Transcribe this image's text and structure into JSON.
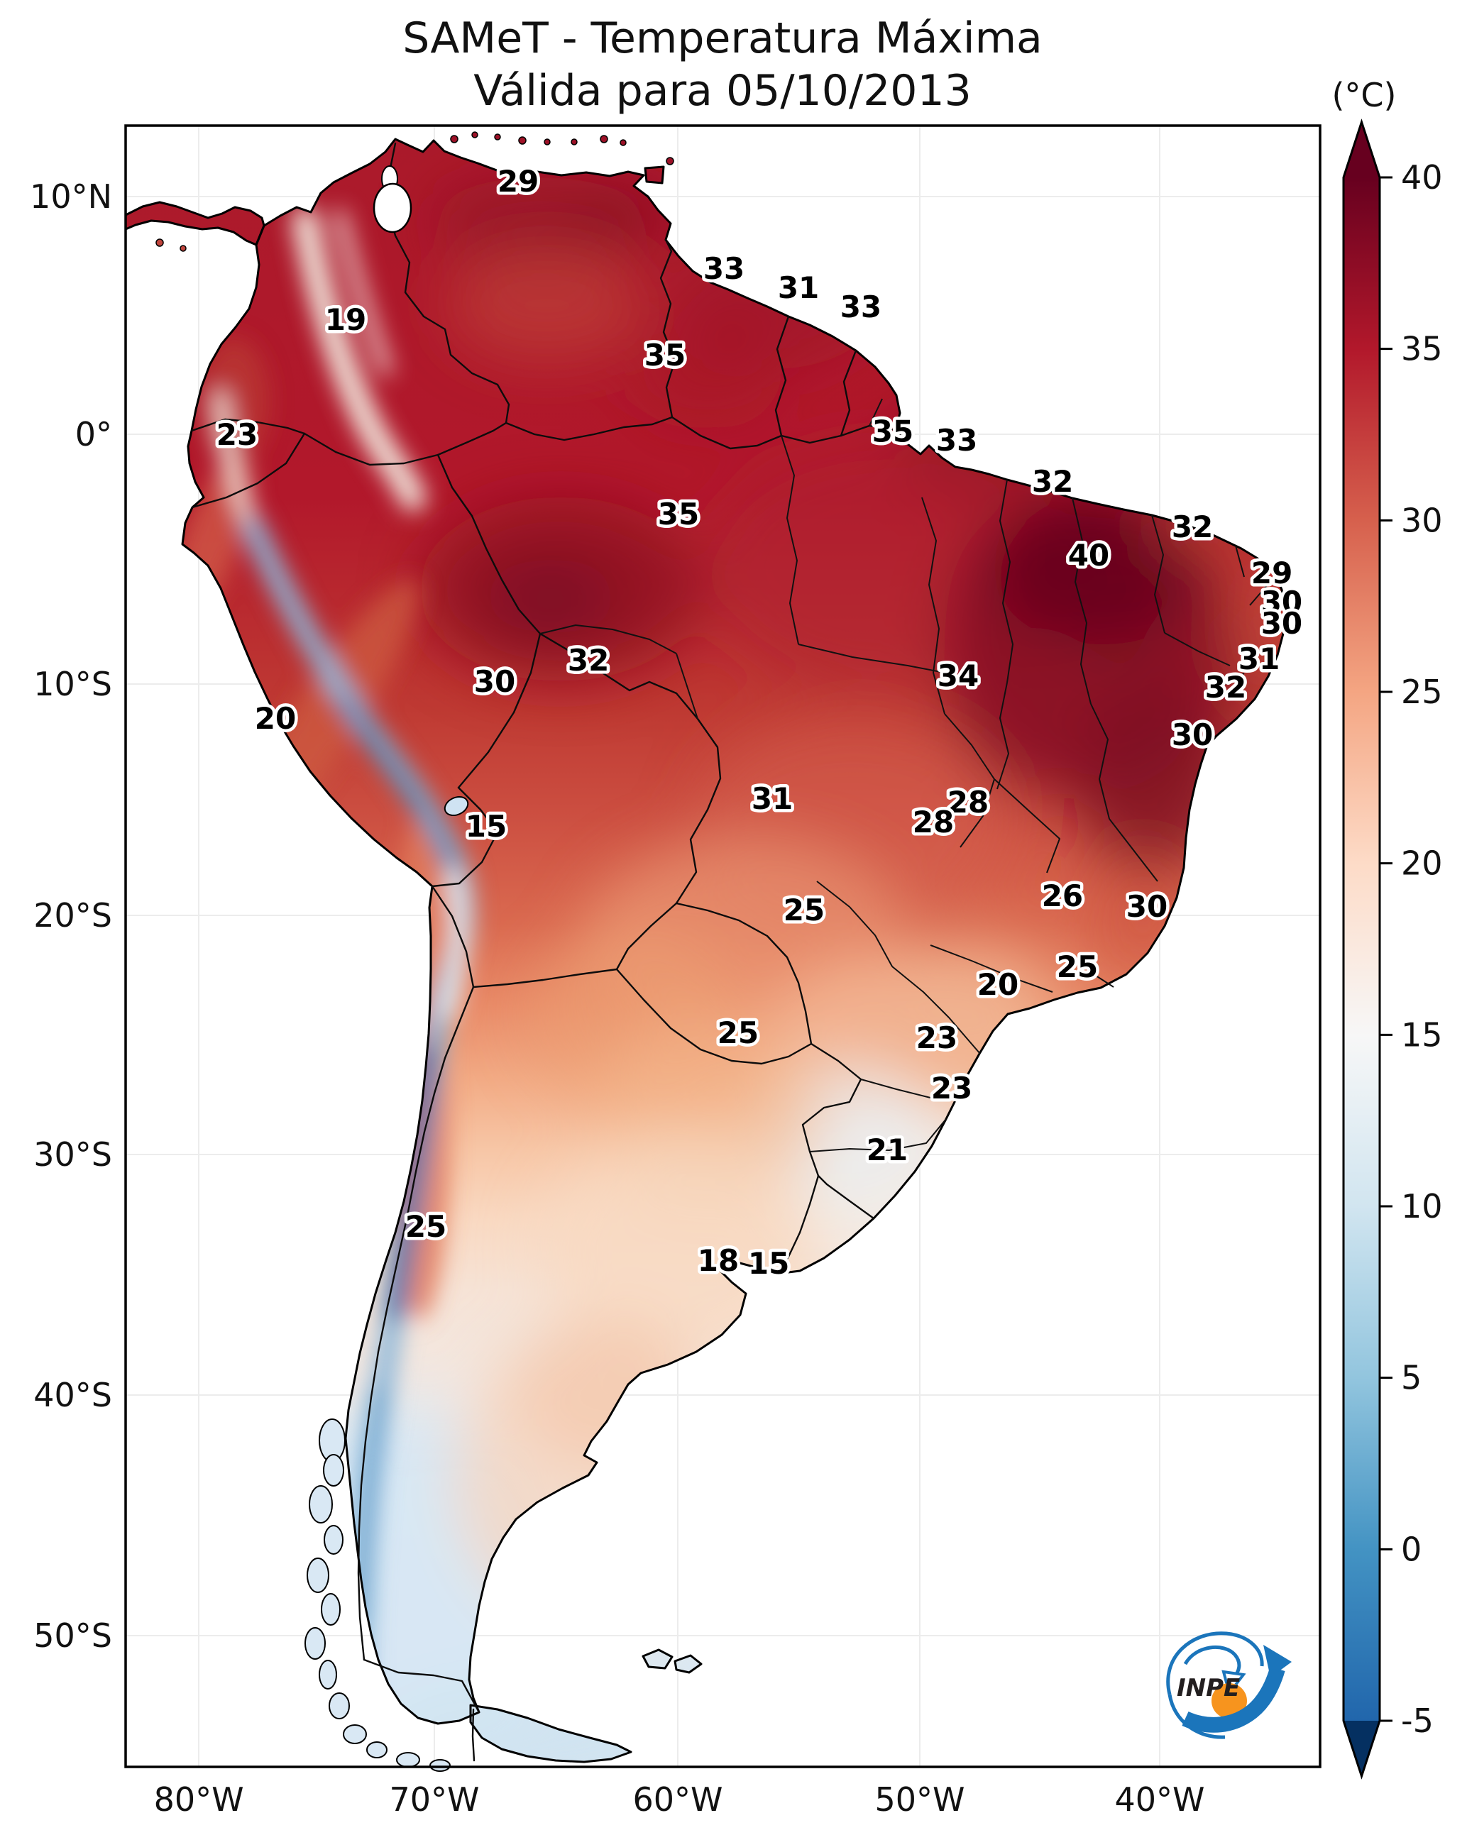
{
  "chart_data": {
    "type": "heatmap",
    "map_region": "South America",
    "title": "SAMeT - Temperatura Máxima",
    "subtitle": "Válida para 05/10/2013",
    "unit": "(°C)",
    "colorbar": {
      "ticks": [
        "40",
        "35",
        "30",
        "25",
        "20",
        "15",
        "10",
        "5",
        "0",
        "-5"
      ],
      "vmin": -5,
      "vmax": 40,
      "extend": "both",
      "colormap": "RdBu_r"
    },
    "x_axis": {
      "ticks": [
        {
          "label": "80°W",
          "x_pct": 13.55
        },
        {
          "label": "70°W",
          "x_pct": 29.61
        },
        {
          "label": "60°W",
          "x_pct": 46.2
        },
        {
          "label": "50°W",
          "x_pct": 62.7
        },
        {
          "label": "40°W",
          "x_pct": 79.05
        }
      ]
    },
    "y_axis": {
      "ticks": [
        {
          "label": "10°N",
          "y_pct": 10.71
        },
        {
          "label": "0°",
          "y_pct": 23.67
        },
        {
          "label": "10°S",
          "y_pct": 37.28
        },
        {
          "label": "20°S",
          "y_pct": 49.88
        },
        {
          "label": "30°S",
          "y_pct": 62.92
        },
        {
          "label": "40°S",
          "y_pct": 76.02
        },
        {
          "label": "50°S",
          "y_pct": 89.13
        }
      ]
    },
    "points": [
      {
        "v": "29",
        "x_pct": 35.32,
        "y_pct": 9.86
      },
      {
        "v": "33",
        "x_pct": 49.35,
        "y_pct": 14.62
      },
      {
        "v": "31",
        "x_pct": 54.43,
        "y_pct": 15.66
      },
      {
        "v": "33",
        "x_pct": 58.68,
        "y_pct": 16.71
      },
      {
        "v": "35",
        "x_pct": 45.33,
        "y_pct": 19.33
      },
      {
        "v": "35",
        "x_pct": 60.86,
        "y_pct": 23.5
      },
      {
        "v": "33",
        "x_pct": 65.22,
        "y_pct": 23.98
      },
      {
        "v": "32",
        "x_pct": 71.75,
        "y_pct": 26.22
      },
      {
        "v": "32",
        "x_pct": 81.28,
        "y_pct": 28.69
      },
      {
        "v": "40",
        "x_pct": 74.21,
        "y_pct": 30.24
      },
      {
        "v": "29",
        "x_pct": 86.7,
        "y_pct": 31.21
      },
      {
        "v": "30",
        "x_pct": 87.37,
        "y_pct": 32.79
      },
      {
        "v": "30",
        "x_pct": 87.37,
        "y_pct": 33.95
      },
      {
        "v": "31",
        "x_pct": 85.83,
        "y_pct": 35.89
      },
      {
        "v": "32",
        "x_pct": 83.55,
        "y_pct": 37.43
      },
      {
        "v": "30",
        "x_pct": 81.28,
        "y_pct": 40.02
      },
      {
        "v": "34",
        "x_pct": 65.31,
        "y_pct": 36.81
      },
      {
        "v": "19",
        "x_pct": 23.56,
        "y_pct": 17.4
      },
      {
        "v": "23",
        "x_pct": 16.16,
        "y_pct": 23.67
      },
      {
        "v": "35",
        "x_pct": 46.25,
        "y_pct": 28.0
      },
      {
        "v": "32",
        "x_pct": 40.11,
        "y_pct": 35.96
      },
      {
        "v": "30",
        "x_pct": 33.72,
        "y_pct": 37.12
      },
      {
        "v": "20",
        "x_pct": 18.77,
        "y_pct": 39.13
      },
      {
        "v": "15",
        "x_pct": 33.14,
        "y_pct": 45.01
      },
      {
        "v": "31",
        "x_pct": 52.64,
        "y_pct": 43.5
      },
      {
        "v": "28",
        "x_pct": 65.99,
        "y_pct": 43.7
      },
      {
        "v": "28",
        "x_pct": 63.62,
        "y_pct": 44.78
      },
      {
        "v": "26",
        "x_pct": 72.42,
        "y_pct": 48.8
      },
      {
        "v": "30",
        "x_pct": 78.18,
        "y_pct": 49.38
      },
      {
        "v": "25",
        "x_pct": 54.81,
        "y_pct": 49.57
      },
      {
        "v": "25",
        "x_pct": 73.44,
        "y_pct": 52.67
      },
      {
        "v": "20",
        "x_pct": 68.02,
        "y_pct": 53.63
      },
      {
        "v": "23",
        "x_pct": 63.86,
        "y_pct": 56.53
      },
      {
        "v": "25",
        "x_pct": 50.31,
        "y_pct": 56.26
      },
      {
        "v": "23",
        "x_pct": 64.88,
        "y_pct": 59.28
      },
      {
        "v": "21",
        "x_pct": 60.47,
        "y_pct": 62.64
      },
      {
        "v": "25",
        "x_pct": 29.03,
        "y_pct": 66.82
      },
      {
        "v": "18",
        "x_pct": 48.96,
        "y_pct": 68.68
      },
      {
        "v": "15",
        "x_pct": 52.4,
        "y_pct": 68.83
      }
    ]
  },
  "branding": {
    "logo_text": "INPE"
  },
  "colors": {
    "colormap_stops": [
      "#67001f",
      "#b2182b",
      "#d6604d",
      "#f4a582",
      "#fddbc7",
      "#f7f7f7",
      "#d1e5f0",
      "#92c5de",
      "#4393c3",
      "#2166ac",
      "#053061"
    ],
    "hottest_core": "#67001f",
    "andes_cold": "#1e5fa3",
    "logo_blue": "#1b75bb",
    "logo_orange": "#f7941e",
    "frame": "#000000",
    "background": "#ffffff"
  }
}
